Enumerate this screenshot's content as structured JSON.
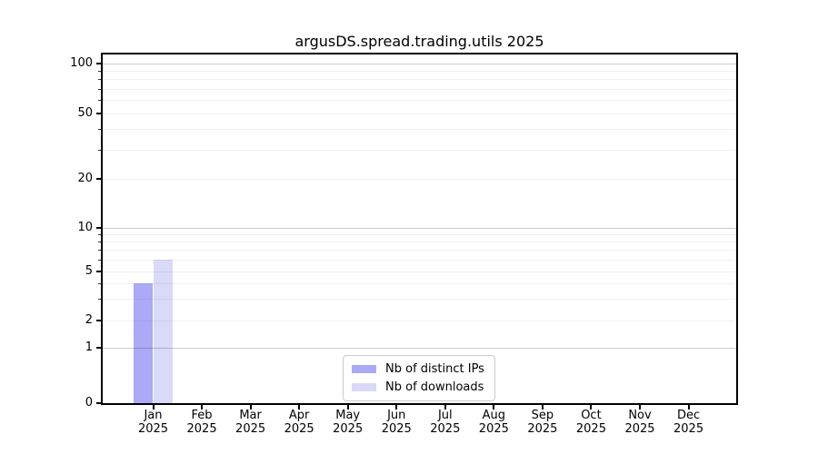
{
  "figure": {
    "title": "argusDS.spread.trading.utils 2025"
  },
  "legend": {
    "items": [
      {
        "label": "Nb of distinct IPs",
        "color": "#aaaaf6"
      },
      {
        "label": "Nb of downloads",
        "color": "#d9d9f8"
      }
    ]
  },
  "chart_data": {
    "type": "bar",
    "title": "argusDS.spread.trading.utils 2025",
    "categories": [
      {
        "month": "Jan",
        "year": "2025"
      },
      {
        "month": "Feb",
        "year": "2025"
      },
      {
        "month": "Mar",
        "year": "2025"
      },
      {
        "month": "Apr",
        "year": "2025"
      },
      {
        "month": "May",
        "year": "2025"
      },
      {
        "month": "Jun",
        "year": "2025"
      },
      {
        "month": "Jul",
        "year": "2025"
      },
      {
        "month": "Aug",
        "year": "2025"
      },
      {
        "month": "Sep",
        "year": "2025"
      },
      {
        "month": "Oct",
        "year": "2025"
      },
      {
        "month": "Nov",
        "year": "2025"
      },
      {
        "month": "Dec",
        "year": "2025"
      }
    ],
    "series": [
      {
        "name": "Nb of distinct IPs",
        "color": "#aaaaf6",
        "values": [
          4,
          0,
          0,
          0,
          0,
          0,
          0,
          0,
          0,
          0,
          0,
          0
        ]
      },
      {
        "name": "Nb of downloads",
        "color": "#d9d9f8",
        "values": [
          6,
          0,
          0,
          0,
          0,
          0,
          0,
          0,
          0,
          0,
          0,
          0
        ]
      }
    ],
    "y_axis": {
      "scale": "log-like",
      "tick_values": [
        0,
        1,
        2,
        5,
        10,
        20,
        50,
        100
      ],
      "tick_labels": [
        "0",
        "1",
        "2",
        "5",
        "10",
        "20",
        "50",
        "100"
      ],
      "decade_ticks": [
        1,
        10,
        100
      ],
      "minor_gridlines": [
        3,
        4,
        6,
        7,
        8,
        9,
        30,
        40,
        60,
        70,
        80,
        90
      ],
      "ylim": [
        0,
        110
      ]
    },
    "xlabel": "",
    "ylabel": "",
    "grid": true,
    "legend_position": "lower center"
  }
}
